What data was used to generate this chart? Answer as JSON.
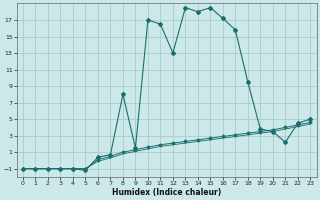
{
  "xlabel": "Humidex (Indice chaleur)",
  "bg_color": "#cce8e8",
  "grid_color": "#aacccc",
  "line_color": "#1a6e6e",
  "xlim": [
    -0.5,
    23.5
  ],
  "ylim": [
    -2.0,
    19.0
  ],
  "xticks": [
    0,
    1,
    2,
    3,
    4,
    5,
    6,
    7,
    8,
    9,
    10,
    11,
    12,
    13,
    14,
    15,
    16,
    17,
    18,
    19,
    20,
    21,
    22,
    23
  ],
  "yticks": [
    -1,
    1,
    3,
    5,
    7,
    9,
    11,
    13,
    15,
    17
  ],
  "series1_x": [
    0,
    1,
    2,
    3,
    4,
    5,
    6,
    7,
    8,
    9,
    10,
    11,
    12,
    13,
    14,
    15,
    16,
    17,
    18,
    19,
    20,
    21,
    22,
    23
  ],
  "series1_y": [
    -1,
    -1,
    -1,
    -1,
    -1,
    -1.2,
    0.4,
    0.7,
    8.0,
    1.5,
    17.0,
    16.5,
    13.0,
    18.5,
    18.0,
    18.5,
    17.2,
    15.8,
    9.5,
    3.8,
    3.5,
    2.2,
    4.5,
    5.0
  ],
  "series2_x": [
    0,
    1,
    2,
    3,
    4,
    5,
    6,
    7,
    8,
    9,
    10,
    11,
    12,
    13,
    14,
    15,
    16,
    17,
    18,
    19,
    20,
    21,
    22,
    23
  ],
  "series2_y": [
    -1,
    -1,
    -1,
    -1,
    -1,
    -1,
    0.1,
    0.5,
    1.0,
    1.3,
    1.6,
    1.9,
    2.1,
    2.3,
    2.5,
    2.7,
    2.9,
    3.1,
    3.3,
    3.5,
    3.7,
    4.0,
    4.3,
    4.6
  ],
  "series3_x": [
    0,
    1,
    2,
    3,
    4,
    5,
    6,
    7,
    8,
    9,
    10,
    11,
    12,
    13,
    14,
    15,
    16,
    17,
    18,
    19,
    20,
    21,
    22,
    23
  ],
  "series3_y": [
    -1,
    -1,
    -1,
    -1,
    -1,
    -1,
    -0.1,
    0.3,
    0.8,
    1.1,
    1.4,
    1.7,
    1.9,
    2.1,
    2.3,
    2.5,
    2.7,
    2.9,
    3.1,
    3.3,
    3.5,
    3.8,
    4.1,
    4.4
  ]
}
